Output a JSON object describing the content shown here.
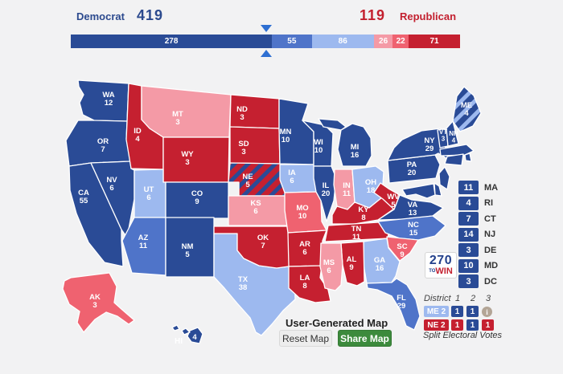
{
  "colors": {
    "safe_dem": "#2a4b96",
    "likely_dem": "#4f74c9",
    "lean_dem": "#9db9ef",
    "lean_rep": "#f49aa6",
    "likely_rep": "#ef6270",
    "safe_rep": "#c52030",
    "dem_text": "#2c4a8e",
    "rep_text": "#c3202f",
    "marker_blue": "#2e6fd2",
    "share_green": "#3c8a3c",
    "info_icon_bg": "#b3a596"
  },
  "header": {
    "democrat_label": "Democrat",
    "democrat_total": "419",
    "republican_total": "119",
    "republican_label": "Republican"
  },
  "bar": {
    "total_ev": 538,
    "win_ev": 270,
    "segments": [
      {
        "value": 278,
        "rating": "safe_dem"
      },
      {
        "value": 55,
        "rating": "likely_dem"
      },
      {
        "value": 86,
        "rating": "lean_dem"
      },
      {
        "value": 26,
        "rating": "lean_rep"
      },
      {
        "value": 22,
        "rating": "likely_rep"
      },
      {
        "value": 71,
        "rating": "safe_rep"
      }
    ]
  },
  "map": {
    "states": [
      {
        "abbr": "WA",
        "ev": 12,
        "rating": "safe_dem"
      },
      {
        "abbr": "OR",
        "ev": 7,
        "rating": "safe_dem"
      },
      {
        "abbr": "CA",
        "ev": 55,
        "rating": "safe_dem"
      },
      {
        "abbr": "NV",
        "ev": 6,
        "rating": "safe_dem"
      },
      {
        "abbr": "ID",
        "ev": 4,
        "rating": "safe_rep"
      },
      {
        "abbr": "MT",
        "ev": 3,
        "rating": "lean_rep"
      },
      {
        "abbr": "WY",
        "ev": 3,
        "rating": "safe_rep"
      },
      {
        "abbr": "UT",
        "ev": 6,
        "rating": "lean_dem"
      },
      {
        "abbr": "CO",
        "ev": 9,
        "rating": "safe_dem"
      },
      {
        "abbr": "AZ",
        "ev": 11,
        "rating": "likely_dem"
      },
      {
        "abbr": "NM",
        "ev": 5,
        "rating": "safe_dem"
      },
      {
        "abbr": "TX",
        "ev": 38,
        "rating": "lean_dem"
      },
      {
        "abbr": "ND",
        "ev": 3,
        "rating": "safe_rep"
      },
      {
        "abbr": "SD",
        "ev": 3,
        "rating": "safe_rep"
      },
      {
        "abbr": "NE",
        "ev": 5,
        "rating": "split_rep"
      },
      {
        "abbr": "KS",
        "ev": 6,
        "rating": "lean_rep"
      },
      {
        "abbr": "OK",
        "ev": 7,
        "rating": "safe_rep"
      },
      {
        "abbr": "MN",
        "ev": 10,
        "rating": "safe_dem"
      },
      {
        "abbr": "IA",
        "ev": 6,
        "rating": "lean_dem"
      },
      {
        "abbr": "MO",
        "ev": 10,
        "rating": "likely_rep"
      },
      {
        "abbr": "AR",
        "ev": 6,
        "rating": "safe_rep"
      },
      {
        "abbr": "LA",
        "ev": 8,
        "rating": "safe_rep"
      },
      {
        "abbr": "WI",
        "ev": 10,
        "rating": "safe_dem"
      },
      {
        "abbr": "IL",
        "ev": 20,
        "rating": "safe_dem"
      },
      {
        "abbr": "MI",
        "ev": 16,
        "rating": "safe_dem"
      },
      {
        "abbr": "IN",
        "ev": 11,
        "rating": "lean_rep"
      },
      {
        "abbr": "OH",
        "ev": 18,
        "rating": "lean_dem"
      },
      {
        "abbr": "KY",
        "ev": 8,
        "rating": "safe_rep"
      },
      {
        "abbr": "TN",
        "ev": 11,
        "rating": "safe_rep"
      },
      {
        "abbr": "WV",
        "ev": 5,
        "rating": "safe_rep"
      },
      {
        "abbr": "VA",
        "ev": 13,
        "rating": "safe_dem"
      },
      {
        "abbr": "NC",
        "ev": 15,
        "rating": "likely_dem"
      },
      {
        "abbr": "SC",
        "ev": 9,
        "rating": "likely_rep"
      },
      {
        "abbr": "GA",
        "ev": 16,
        "rating": "lean_dem"
      },
      {
        "abbr": "AL",
        "ev": 9,
        "rating": "safe_rep"
      },
      {
        "abbr": "MS",
        "ev": 6,
        "rating": "lean_rep"
      },
      {
        "abbr": "FL",
        "ev": 29,
        "rating": "likely_dem"
      },
      {
        "abbr": "PA",
        "ev": 20,
        "rating": "safe_dem"
      },
      {
        "abbr": "NY",
        "ev": 29,
        "rating": "safe_dem"
      },
      {
        "abbr": "VT",
        "ev": 3,
        "rating": "safe_dem"
      },
      {
        "abbr": "NH",
        "ev": 4,
        "rating": "safe_dem"
      },
      {
        "abbr": "ME",
        "ev": 4,
        "rating": "split_dem"
      },
      {
        "abbr": "MA",
        "ev": 11,
        "rating": "safe_dem"
      },
      {
        "abbr": "RI",
        "ev": 4,
        "rating": "safe_dem"
      },
      {
        "abbr": "CT",
        "ev": 7,
        "rating": "safe_dem"
      },
      {
        "abbr": "NJ",
        "ev": 14,
        "rating": "safe_dem"
      },
      {
        "abbr": "DE",
        "ev": 3,
        "rating": "safe_dem"
      },
      {
        "abbr": "MD",
        "ev": 10,
        "rating": "safe_dem"
      },
      {
        "abbr": "DC",
        "ev": 3,
        "rating": "safe_dem"
      },
      {
        "abbr": "AK",
        "ev": 3,
        "rating": "likely_rep"
      },
      {
        "abbr": "HI",
        "ev": 4,
        "rating": "safe_dem"
      }
    ]
  },
  "ev_list": [
    {
      "ev": 11,
      "state": "MA"
    },
    {
      "ev": 4,
      "state": "RI"
    },
    {
      "ev": 7,
      "state": "CT"
    },
    {
      "ev": 14,
      "state": "NJ"
    },
    {
      "ev": 3,
      "state": "DE"
    },
    {
      "ev": 10,
      "state": "MD"
    },
    {
      "ev": 3,
      "state": "DC"
    }
  ],
  "logo": {
    "line1": "270",
    "to": "TO",
    "win": "WIN"
  },
  "districts": {
    "header_label": "District",
    "cols": [
      "1",
      "2",
      "3"
    ],
    "rows": [
      {
        "label": "ME 2",
        "rating": "lean_dem",
        "cells": [
          {
            "value": "1",
            "rating": "safe_dem"
          },
          {
            "value": "1",
            "rating": "safe_dem"
          },
          {
            "icon": "info"
          }
        ]
      },
      {
        "label": "NE 2",
        "rating": "safe_rep",
        "cells": [
          {
            "value": "1",
            "rating": "safe_rep"
          },
          {
            "value": "1",
            "rating": "safe_dem"
          },
          {
            "value": "1",
            "rating": "safe_rep"
          }
        ]
      }
    ],
    "footnote": "Split Electoral Votes"
  },
  "footer": {
    "map_title": "User-Generated Map",
    "reset_label": "Reset Map",
    "share_label": "Share Map"
  }
}
